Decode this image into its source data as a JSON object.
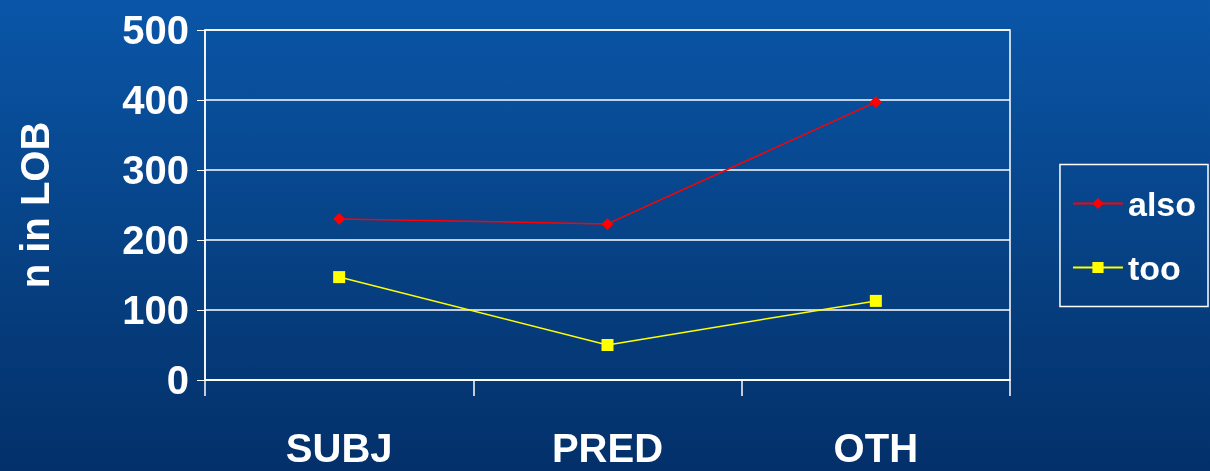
{
  "chart_data": {
    "type": "line",
    "ylabel": "n in LOB",
    "categories": [
      "SUBJ",
      "PRED",
      "OTH"
    ],
    "series": [
      {
        "name": "also",
        "color": "#ff0000",
        "values": [
          230,
          223,
          397
        ],
        "marker": "diamond"
      },
      {
        "name": "too",
        "color": "#ffff00",
        "values": [
          147,
          50,
          113
        ],
        "marker": "square"
      }
    ],
    "ylim": [
      0,
      500
    ],
    "yticks": [
      0,
      100,
      200,
      300,
      400,
      500
    ],
    "grid": "y",
    "legend": "right"
  }
}
